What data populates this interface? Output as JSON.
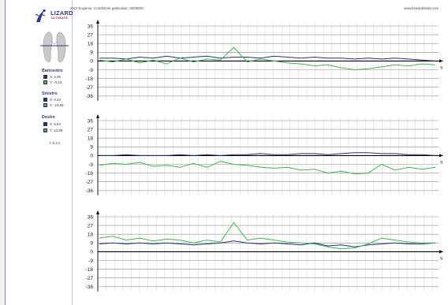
{
  "header": {
    "title": "XXX Eugenio, Condizioni particolari, 30/08/00",
    "url": "www.lizardultimate.com"
  },
  "logo": {
    "name": "LIZARD",
    "subtitle": "ULTIMATE"
  },
  "legend": {
    "baricentro": {
      "title": "Baricentro",
      "x": "X: 3,36",
      "y": "Y: -0,24"
    },
    "sinistro": {
      "title": "Sinistro",
      "x": "X: 0,42",
      "y": "Y: -13,55"
    },
    "destro": {
      "title": "Destro",
      "x": "X: 8,64",
      "y": "Y: 13,36"
    },
    "interval": "t: 0.2 s"
  },
  "colors": {
    "x_series": "#233282",
    "y_series": "#3cb94a",
    "grid": "#8c8c8c",
    "axis": "#000000"
  },
  "chart_data": [
    {
      "type": "line",
      "name": "Baricentro",
      "yticks": [
        36,
        27,
        18,
        9,
        0,
        -9,
        -18,
        -27,
        -36
      ],
      "ylim": [
        -36,
        36
      ],
      "xlabel": "s",
      "grid": true,
      "x": [
        0,
        4,
        8,
        12,
        16,
        20,
        24,
        28,
        32,
        36,
        40,
        44,
        48,
        52,
        56,
        60,
        64,
        68,
        72,
        76,
        80,
        84,
        88,
        92,
        96,
        100
      ],
      "series": [
        {
          "name": "X",
          "values": [
            3,
            3,
            2,
            4,
            3,
            5,
            3,
            4,
            5,
            3,
            4,
            4,
            3,
            5,
            4,
            3,
            4,
            3,
            3,
            2,
            3,
            2,
            3,
            2,
            1,
            0
          ]
        },
        {
          "name": "Y",
          "values": [
            1,
            -1,
            2,
            -2,
            1,
            -3,
            3,
            -1,
            2,
            1,
            14,
            -1,
            2,
            0,
            -2,
            -3,
            -5,
            -4,
            -7,
            -9,
            -8,
            -6,
            -4,
            -5,
            -3,
            -4
          ]
        }
      ]
    },
    {
      "type": "line",
      "name": "Sinistro",
      "yticks": [
        36,
        27,
        18,
        9,
        0,
        -9,
        -18,
        -27,
        -36
      ],
      "ylim": [
        -36,
        36
      ],
      "xlabel": "s",
      "grid": true,
      "x": [
        0,
        4,
        8,
        12,
        16,
        20,
        24,
        28,
        32,
        36,
        40,
        44,
        48,
        52,
        56,
        60,
        64,
        68,
        72,
        76,
        80,
        84,
        88,
        92,
        96,
        100
      ],
      "series": [
        {
          "name": "X",
          "values": [
            0,
            0,
            1,
            0,
            0,
            0,
            1,
            0,
            1,
            0,
            1,
            1,
            2,
            1,
            1,
            2,
            2,
            1,
            2,
            3,
            3,
            2,
            2,
            1,
            1,
            0
          ]
        },
        {
          "name": "Y",
          "values": [
            -10,
            -8,
            -9,
            -7,
            -11,
            -10,
            -12,
            -8,
            -12,
            -6,
            -9,
            -10,
            -12,
            -13,
            -12,
            -15,
            -14,
            -18,
            -16,
            -19,
            -18,
            -9,
            -15,
            -12,
            -14,
            -12
          ]
        }
      ]
    },
    {
      "type": "line",
      "name": "Destro",
      "yticks": [
        36,
        27,
        18,
        9,
        0,
        -9,
        -18,
        -27,
        -36
      ],
      "ylim": [
        -36,
        36
      ],
      "xlabel": "s",
      "grid": true,
      "x": [
        0,
        4,
        8,
        12,
        16,
        20,
        24,
        28,
        32,
        36,
        40,
        44,
        48,
        52,
        56,
        60,
        64,
        68,
        72,
        76,
        80,
        84,
        88,
        92,
        96,
        100
      ],
      "series": [
        {
          "name": "X",
          "values": [
            8,
            9,
            8,
            9,
            8,
            9,
            8,
            7,
            8,
            9,
            11,
            9,
            8,
            9,
            8,
            7,
            9,
            6,
            7,
            5,
            7,
            8,
            9,
            8,
            8,
            9
          ]
        },
        {
          "name": "Y",
          "values": [
            14,
            16,
            12,
            14,
            11,
            13,
            12,
            9,
            12,
            10,
            30,
            12,
            14,
            12,
            10,
            9,
            8,
            5,
            3,
            4,
            8,
            14,
            12,
            10,
            9,
            9
          ]
        }
      ]
    }
  ]
}
